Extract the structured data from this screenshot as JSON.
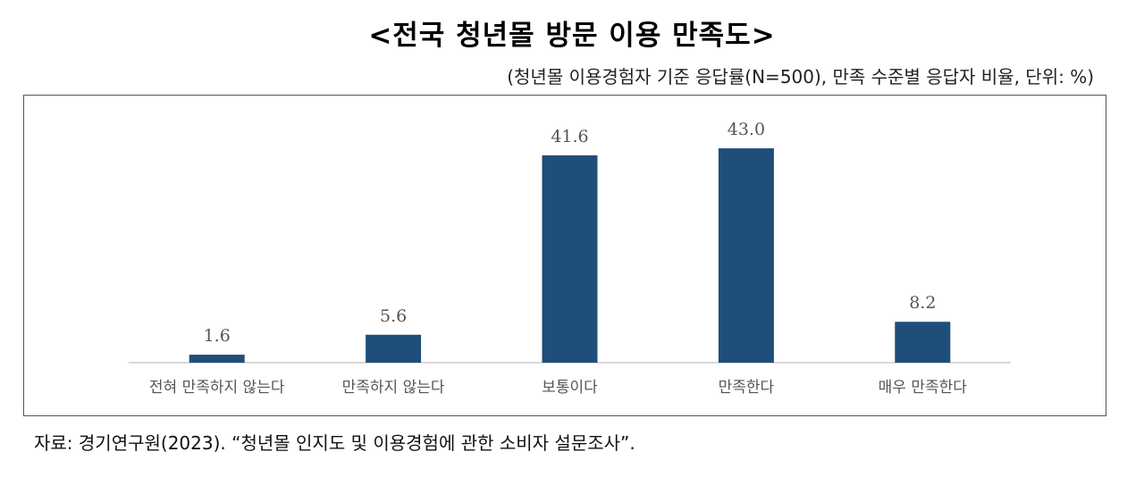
{
  "title": "<전국 청년몰 방문 이용 만족도>",
  "subtitle": "(청년몰 이용경험자 기준 응답률(N=500), 만족 수준별 응답자 비율, 단위: %)",
  "source": "자료: 경기연구원(2023). “청년몰 인지도 및 이용경험에 관한 소비자 설문조사”.",
  "colors": {
    "bar": "#1f4e79",
    "axis": "#d9d9d9"
  },
  "chart_data": {
    "type": "bar",
    "categories": [
      "전혀 만족하지 않는다",
      "만족하지 않는다",
      "보통이다",
      "만족한다",
      "매우 만족한다"
    ],
    "values": [
      1.6,
      5.6,
      41.6,
      43.0,
      8.2
    ],
    "value_labels": [
      "1.6",
      "5.6",
      "41.6",
      "43.0",
      "8.2"
    ],
    "ylim": [
      0,
      50
    ],
    "grid": false,
    "legend": "none"
  }
}
